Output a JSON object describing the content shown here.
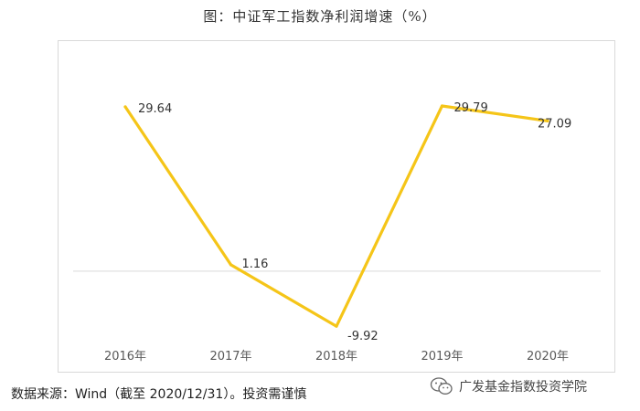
{
  "chart_data": {
    "type": "line",
    "title": "图：中证军工指数净利润增速（%）",
    "categories": [
      "2016年",
      "2017年",
      "2018年",
      "2019年",
      "2020年"
    ],
    "series": [
      {
        "values": [
          29.64,
          1.16,
          -9.92,
          29.79,
          27.09
        ],
        "color": "#f5c518"
      }
    ],
    "data_labels": [
      "29.64",
      "1.16",
      "-9.92",
      "29.79",
      "27.09"
    ],
    "xlabel": "",
    "ylabel": "",
    "ylim": [
      -15,
      40
    ],
    "grid": false,
    "legend": "none",
    "zero_line": true
  },
  "footer": {
    "source": "数据来源：Wind（截至 2020/12/31）。投资需谨慎",
    "watermark_text": "广发基金指数投资学院",
    "watermark_icon": "wechat-icon"
  },
  "colors": {
    "line": "#f5c518",
    "axis": "#d9d9d9",
    "text": "#595959"
  }
}
